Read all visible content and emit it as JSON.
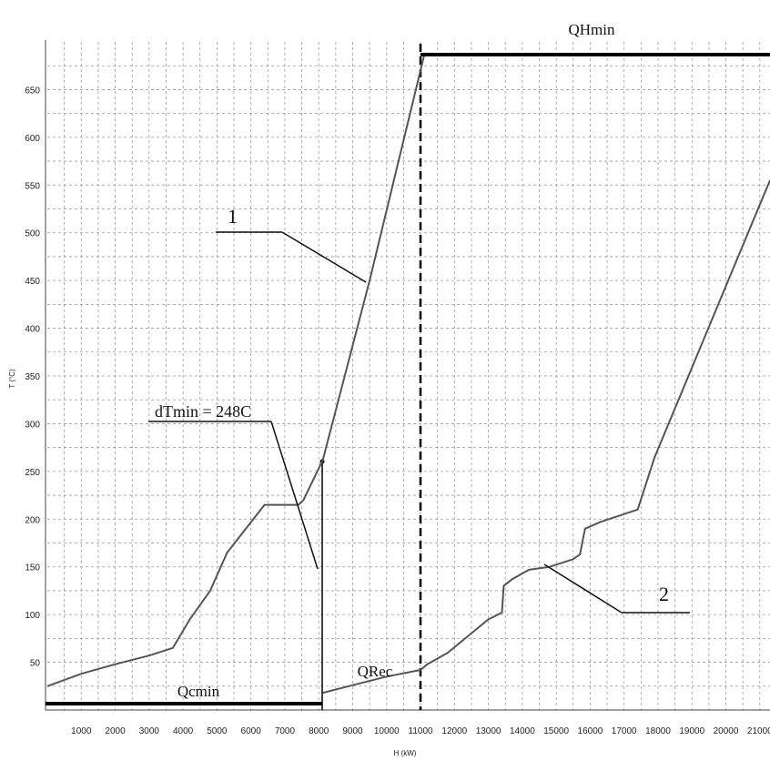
{
  "chart_data": {
    "type": "line",
    "title": "",
    "xlabel": "H (kW)",
    "ylabel": "T (°C)",
    "xlim": [
      0,
      21300
    ],
    "ylim": [
      0,
      700
    ],
    "grid": true,
    "x_ticks": [
      1000,
      2000,
      3000,
      4000,
      5000,
      6000,
      7000,
      8000,
      9000,
      10000,
      11000,
      12000,
      13000,
      14000,
      15000,
      16000,
      17000,
      18000,
      19000,
      20000,
      21000
    ],
    "y_ticks": [
      50,
      100,
      150,
      200,
      250,
      300,
      350,
      400,
      450,
      500,
      550,
      600,
      650
    ],
    "series": [
      {
        "name": "1",
        "color": "#555555",
        "points": [
          [
            0,
            25
          ],
          [
            1000,
            38
          ],
          [
            2000,
            48
          ],
          [
            3000,
            57
          ],
          [
            3700,
            65
          ],
          [
            4200,
            95
          ],
          [
            4800,
            125
          ],
          [
            5300,
            165
          ],
          [
            6400,
            215
          ],
          [
            7400,
            215
          ],
          [
            7550,
            220
          ],
          [
            8120,
            262
          ],
          [
            9500,
            450
          ],
          [
            11100,
            685
          ]
        ]
      },
      {
        "name": "2",
        "color": "#555555",
        "points": [
          [
            8120,
            18
          ],
          [
            9000,
            26
          ],
          [
            10000,
            35
          ],
          [
            11000,
            42
          ],
          [
            11200,
            48
          ],
          [
            11800,
            60
          ],
          [
            13000,
            95
          ],
          [
            13400,
            102
          ],
          [
            13450,
            130
          ],
          [
            13700,
            137
          ],
          [
            14200,
            147
          ],
          [
            14800,
            150
          ],
          [
            15500,
            158
          ],
          [
            15700,
            163
          ],
          [
            15850,
            190
          ],
          [
            16300,
            197
          ],
          [
            17400,
            210
          ],
          [
            17900,
            265
          ],
          [
            21300,
            555
          ]
        ]
      }
    ],
    "annotations": {
      "label_1": "1",
      "label_2": "2",
      "dtmin": "dTmin = 248C",
      "qhmin": "QHmin",
      "qrec": "QRec",
      "qcmin": "Qcmin"
    }
  },
  "colors": {
    "grid": "#999999",
    "curve": "#555555",
    "bars": "#000000"
  }
}
